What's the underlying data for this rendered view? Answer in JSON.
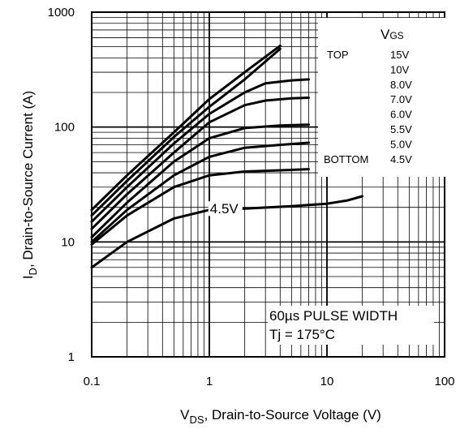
{
  "chart_data": {
    "type": "line",
    "x_scale": "log",
    "y_scale": "log",
    "xlim": [
      0.1,
      100
    ],
    "ylim": [
      1,
      1000
    ],
    "grid": true,
    "x_ticks": [
      {
        "value": 0.1,
        "label": "0.1"
      },
      {
        "value": 1,
        "label": "1"
      },
      {
        "value": 10,
        "label": "10"
      },
      {
        "value": 100,
        "label": "100"
      }
    ],
    "y_ticks": [
      {
        "value": 1,
        "label": "1"
      },
      {
        "value": 10,
        "label": "10"
      },
      {
        "value": 100,
        "label": "100"
      },
      {
        "value": 1000,
        "label": "1000"
      }
    ],
    "xlabel_main": "V",
    "xlabel_sub": "DS",
    "xlabel_rest": ", Drain-to-Source Voltage (V)",
    "ylabel_main": "I",
    "ylabel_sub": "D",
    "ylabel_rest": ", Drain-to-Source Current (A)",
    "legend": {
      "title_main": "V",
      "title_sub": "GS",
      "position": "top-right",
      "top_label": "TOP",
      "bottom_label": "BOTTOM",
      "entries": [
        "15V",
        "10V",
        "8.0V",
        "7.0V",
        "6.0V",
        "5.5V",
        "5.0V",
        "4.5V"
      ]
    },
    "annotations": {
      "pulse": "60µs PULSE WIDTH",
      "tj": "Tj = 175°C",
      "curve_label": "4.5V",
      "curve_label_at": {
        "x": 0.95,
        "y": 19.5
      }
    },
    "series": [
      {
        "values": [
          [
            0.1,
            19
          ],
          [
            0.2,
            38
          ],
          [
            0.5,
            90
          ],
          [
            1,
            175
          ],
          [
            2,
            300
          ],
          [
            4,
            510
          ]
        ]
      },
      {
        "values": [
          [
            0.1,
            17
          ],
          [
            0.2,
            34
          ],
          [
            0.5,
            82
          ],
          [
            1,
            150
          ],
          [
            2,
            260
          ],
          [
            4,
            480
          ]
        ]
      },
      {
        "values": [
          [
            0.1,
            15
          ],
          [
            0.2,
            30
          ],
          [
            0.5,
            72
          ],
          [
            1,
            130
          ],
          [
            2,
            200
          ],
          [
            3,
            240
          ],
          [
            5,
            255
          ],
          [
            7,
            260
          ]
        ]
      },
      {
        "values": [
          [
            0.1,
            13
          ],
          [
            0.2,
            26
          ],
          [
            0.5,
            60
          ],
          [
            1,
            110
          ],
          [
            2,
            155
          ],
          [
            3,
            170
          ],
          [
            5,
            178
          ],
          [
            7,
            180
          ]
        ]
      },
      {
        "values": [
          [
            0.1,
            11
          ],
          [
            0.2,
            22
          ],
          [
            0.5,
            50
          ],
          [
            1,
            80
          ],
          [
            2,
            98
          ],
          [
            4,
            103
          ],
          [
            7,
            105
          ]
        ]
      },
      {
        "values": [
          [
            0.1,
            10
          ],
          [
            0.2,
            19
          ],
          [
            0.5,
            38
          ],
          [
            1,
            55
          ],
          [
            2,
            66
          ],
          [
            4,
            70
          ],
          [
            7,
            73
          ]
        ]
      },
      {
        "values": [
          [
            0.1,
            9.5
          ],
          [
            0.2,
            17
          ],
          [
            0.5,
            30
          ],
          [
            1,
            38
          ],
          [
            2,
            41
          ],
          [
            4,
            42
          ],
          [
            7,
            43
          ]
        ]
      },
      {
        "values": [
          [
            0.1,
            6
          ],
          [
            0.2,
            10
          ],
          [
            0.5,
            16
          ],
          [
            1,
            19
          ],
          [
            2,
            19.5
          ],
          [
            5,
            20.5
          ],
          [
            10,
            21.5
          ],
          [
            15,
            23
          ],
          [
            20,
            25
          ]
        ]
      }
    ]
  }
}
